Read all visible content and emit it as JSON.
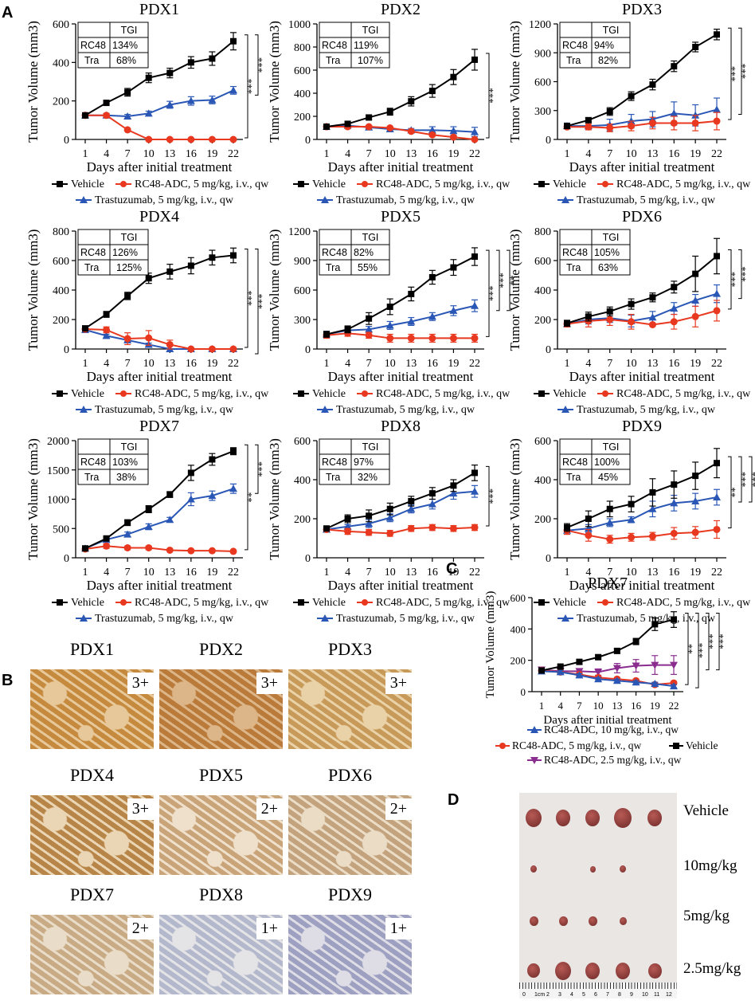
{
  "panel_letters": {
    "A": "A",
    "B": "B",
    "C": "C",
    "D": "D"
  },
  "common": {
    "ylabel": "Tumor Volume (mm3)",
    "xlabel": "Days after initial treatment",
    "days": [
      "1",
      "4",
      "7",
      "10",
      "13",
      "16",
      "19",
      "22"
    ],
    "legend_vehicle": "Vehicle",
    "legend_rc48": "RC48-ADC, 5 mg/kg, i.v., qw",
    "legend_tra": "Trastuzumab, 5 mg/kg, i.v., qw",
    "tgi_header": "TGI",
    "row1": "RC48",
    "row2": "Tra"
  },
  "colors": {
    "vehicle": "#000000",
    "rc48": "#e8381f",
    "tra": "#2a57b5",
    "rc48_25": "#8a2d8f"
  },
  "chart_data": [
    {
      "type": "line",
      "title": "PDX1",
      "ylim": [
        0,
        600
      ],
      "yticks": [
        "0",
        "200",
        "400",
        "600"
      ],
      "tgi": [
        "134%",
        "68%"
      ],
      "series": [
        {
          "name": "Vehicle",
          "values": [
            125,
            190,
            245,
            320,
            345,
            400,
            420,
            510
          ],
          "err": [
            10,
            12,
            20,
            25,
            25,
            30,
            35,
            45
          ]
        },
        {
          "name": "RC48",
          "values": [
            125,
            125,
            50,
            0,
            0,
            0,
            0,
            0
          ],
          "err": [
            8,
            8,
            5,
            0,
            0,
            0,
            0,
            0
          ]
        },
        {
          "name": "Tra",
          "values": [
            125,
            125,
            120,
            135,
            180,
            200,
            205,
            255
          ],
          "err": [
            10,
            10,
            10,
            12,
            18,
            22,
            20,
            20
          ]
        }
      ],
      "sig": [
        "***",
        "***"
      ]
    },
    {
      "type": "line",
      "title": "PDX2",
      "ylim": [
        0,
        1000
      ],
      "yticks": [
        "0",
        "200",
        "400",
        "600",
        "800",
        "1000"
      ],
      "tgi": [
        "119%",
        "107%"
      ],
      "series": [
        {
          "name": "Vehicle",
          "values": [
            110,
            135,
            190,
            240,
            330,
            420,
            540,
            690
          ],
          "err": [
            10,
            12,
            20,
            30,
            40,
            55,
            65,
            90
          ]
        },
        {
          "name": "RC48",
          "values": [
            110,
            110,
            110,
            100,
            70,
            40,
            20,
            0
          ],
          "err": [
            10,
            10,
            10,
            10,
            10,
            8,
            5,
            0
          ]
        },
        {
          "name": "Tra",
          "values": [
            110,
            120,
            105,
            90,
            80,
            80,
            75,
            65
          ],
          "err": [
            10,
            12,
            12,
            12,
            15,
            30,
            35,
            40
          ]
        }
      ],
      "sig": [
        "***"
      ]
    },
    {
      "type": "line",
      "title": "PDX3",
      "ylim": [
        0,
        1200
      ],
      "yticks": [
        "0",
        "300",
        "600",
        "900",
        "1200"
      ],
      "tgi": [
        "94%",
        "82%"
      ],
      "series": [
        {
          "name": "Vehicle",
          "values": [
            140,
            200,
            290,
            450,
            570,
            760,
            960,
            1090
          ],
          "err": [
            20,
            25,
            40,
            45,
            55,
            55,
            50,
            55
          ]
        },
        {
          "name": "RC48",
          "values": [
            130,
            130,
            120,
            140,
            170,
            170,
            170,
            190
          ],
          "err": [
            20,
            30,
            40,
            50,
            60,
            70,
            80,
            90
          ]
        },
        {
          "name": "Tra",
          "values": [
            140,
            140,
            150,
            190,
            210,
            270,
            250,
            310
          ],
          "err": [
            30,
            40,
            60,
            70,
            80,
            120,
            110,
            120
          ]
        }
      ],
      "sig": [
        "***",
        "***"
      ]
    },
    {
      "type": "line",
      "title": "PDX4",
      "ylim": [
        0,
        800
      ],
      "yticks": [
        "0",
        "200",
        "400",
        "600",
        "800"
      ],
      "tgi": [
        "126%",
        "125%"
      ],
      "series": [
        {
          "name": "Vehicle",
          "values": [
            140,
            235,
            360,
            480,
            525,
            565,
            620,
            635
          ],
          "err": [
            10,
            20,
            25,
            35,
            50,
            55,
            50,
            50
          ]
        },
        {
          "name": "RC48",
          "values": [
            135,
            130,
            70,
            75,
            30,
            0,
            0,
            0
          ],
          "err": [
            12,
            20,
            40,
            50,
            30,
            0,
            0,
            0
          ]
        },
        {
          "name": "Tra",
          "values": [
            130,
            90,
            60,
            30,
            0,
            0,
            0,
            0
          ],
          "err": [
            10,
            10,
            10,
            10,
            0,
            0,
            0,
            0
          ]
        }
      ],
      "sig": [
        "***",
        "***"
      ]
    },
    {
      "type": "line",
      "title": "PDX5",
      "ylim": [
        0,
        1200
      ],
      "yticks": [
        "0",
        "300",
        "600",
        "900",
        "1200"
      ],
      "tgi": [
        "82%",
        "55%"
      ],
      "series": [
        {
          "name": "Vehicle",
          "values": [
            150,
            200,
            310,
            430,
            560,
            730,
            830,
            940
          ],
          "err": [
            30,
            35,
            60,
            80,
            70,
            70,
            80,
            90
          ]
        },
        {
          "name": "RC48",
          "values": [
            140,
            160,
            140,
            110,
            110,
            110,
            110,
            110
          ],
          "err": [
            30,
            30,
            30,
            40,
            40,
            40,
            40,
            40
          ]
        },
        {
          "name": "Tra",
          "values": [
            150,
            190,
            200,
            240,
            280,
            330,
            390,
            440
          ],
          "err": [
            30,
            30,
            30,
            40,
            40,
            40,
            50,
            60
          ]
        }
      ],
      "sig": [
        "***",
        "***",
        "**"
      ]
    },
    {
      "type": "line",
      "title": "PDX6",
      "ylim": [
        0,
        800
      ],
      "yticks": [
        "0",
        "200",
        "400",
        "600",
        "800"
      ],
      "tgi": [
        "105%",
        "63%"
      ],
      "series": [
        {
          "name": "Vehicle",
          "values": [
            175,
            220,
            255,
            305,
            350,
            420,
            510,
            630
          ],
          "err": [
            20,
            30,
            30,
            35,
            30,
            40,
            120,
            120
          ]
        },
        {
          "name": "RC48",
          "values": [
            170,
            190,
            200,
            185,
            165,
            185,
            220,
            260
          ],
          "err": [
            20,
            40,
            40,
            50,
            10,
            50,
            70,
            70
          ]
        },
        {
          "name": "Tra",
          "values": [
            170,
            200,
            210,
            190,
            215,
            275,
            330,
            375
          ],
          "err": [
            20,
            30,
            30,
            40,
            40,
            40,
            40,
            60
          ]
        }
      ],
      "sig": [
        "***",
        "***"
      ]
    },
    {
      "type": "line",
      "title": "PDX7",
      "ylim": [
        0,
        2000
      ],
      "yticks": [
        "0",
        "500",
        "1000",
        "1500",
        "2000"
      ],
      "tgi": [
        "103%",
        "38%"
      ],
      "series": [
        {
          "name": "Vehicle",
          "values": [
            160,
            330,
            600,
            830,
            1080,
            1450,
            1680,
            1820
          ],
          "err": [
            20,
            30,
            50,
            60,
            50,
            130,
            100,
            60
          ]
        },
        {
          "name": "RC48",
          "values": [
            150,
            200,
            170,
            170,
            130,
            120,
            120,
            110
          ],
          "err": [
            20,
            40,
            30,
            30,
            20,
            20,
            20,
            20
          ]
        },
        {
          "name": "Tra",
          "values": [
            160,
            310,
            400,
            530,
            650,
            1000,
            1060,
            1180
          ],
          "err": [
            20,
            30,
            40,
            50,
            40,
            110,
            80,
            80
          ]
        }
      ],
      "sig": [
        "**",
        "***"
      ]
    },
    {
      "type": "line",
      "title": "PDX8",
      "ylim": [
        0,
        600
      ],
      "yticks": [
        "0",
        "200",
        "400",
        "600"
      ],
      "tgi": [
        "97%",
        "32%"
      ],
      "series": [
        {
          "name": "Vehicle",
          "values": [
            150,
            200,
            215,
            250,
            290,
            330,
            370,
            435
          ],
          "err": [
            10,
            20,
            30,
            30,
            25,
            30,
            30,
            40
          ]
        },
        {
          "name": "RC48",
          "values": [
            145,
            135,
            130,
            125,
            150,
            155,
            150,
            155
          ],
          "err": [
            10,
            15,
            15,
            15,
            15,
            15,
            15,
            15
          ]
        },
        {
          "name": "Tra",
          "values": [
            145,
            160,
            175,
            205,
            250,
            275,
            330,
            340
          ],
          "err": [
            10,
            10,
            20,
            20,
            20,
            25,
            30,
            30
          ]
        }
      ],
      "sig": [
        "***"
      ]
    },
    {
      "type": "line",
      "title": "PDX9",
      "ylim": [
        0,
        600
      ],
      "yticks": [
        "0",
        "200",
        "400",
        "600"
      ],
      "tgi": [
        "100%",
        "45%"
      ],
      "series": [
        {
          "name": "Vehicle",
          "values": [
            155,
            200,
            250,
            275,
            335,
            375,
            420,
            485
          ],
          "err": [
            20,
            40,
            40,
            40,
            70,
            70,
            70,
            75
          ]
        },
        {
          "name": "RC48",
          "values": [
            140,
            115,
            95,
            105,
            110,
            125,
            130,
            145
          ],
          "err": [
            20,
            30,
            20,
            20,
            20,
            30,
            30,
            45
          ]
        },
        {
          "name": "Tra",
          "values": [
            140,
            150,
            180,
            195,
            250,
            280,
            290,
            310
          ],
          "err": [
            10,
            20,
            20,
            15,
            40,
            40,
            40,
            40
          ]
        }
      ],
      "sig": [
        "**",
        "***",
        "***"
      ]
    },
    {
      "type": "line",
      "title": "PDX7",
      "ylim": [
        0,
        600
      ],
      "yticks": [
        "0",
        "200",
        "400",
        "600"
      ],
      "series": [
        {
          "name": "Vehicle",
          "values": [
            135,
            160,
            190,
            220,
            260,
            320,
            430,
            460
          ],
          "err": [
            10,
            10,
            15,
            15,
            15,
            20,
            40,
            50
          ]
        },
        {
          "name": "RC48-ADC, 10 mg/kg",
          "values": [
            130,
            125,
            105,
            80,
            70,
            60,
            50,
            35
          ],
          "err": [
            10,
            10,
            10,
            10,
            10,
            10,
            10,
            10
          ]
        },
        {
          "name": "RC48-ADC, 5 mg/kg",
          "values": [
            135,
            125,
            110,
            90,
            80,
            70,
            45,
            55
          ],
          "err": [
            10,
            10,
            10,
            10,
            10,
            10,
            10,
            10
          ]
        },
        {
          "name": "RC48-ADC, 2.5 mg/kg",
          "values": [
            140,
            130,
            130,
            125,
            150,
            165,
            170,
            170
          ],
          "err": [
            10,
            15,
            15,
            20,
            30,
            40,
            60,
            60
          ]
        }
      ],
      "sig": [
        "**",
        "***",
        "***",
        "***"
      ],
      "legend": [
        "RC48-ADC, 10 mg/kg, i.v., qw",
        "RC48-ADC, 5 mg/kg, i.v., qw",
        "Vehicle",
        "RC48-ADC, 2.5 mg/kg, i.v., qw"
      ]
    }
  ],
  "ihc": [
    {
      "name": "PDX1",
      "score": "3+"
    },
    {
      "name": "PDX2",
      "score": "3+"
    },
    {
      "name": "PDX3",
      "score": "3+"
    },
    {
      "name": "PDX4",
      "score": "3+"
    },
    {
      "name": "PDX5",
      "score": "2+"
    },
    {
      "name": "PDX6",
      "score": "2+"
    },
    {
      "name": "PDX7",
      "score": "2+"
    },
    {
      "name": "PDX8",
      "score": "1+"
    },
    {
      "name": "PDX9",
      "score": "1+"
    }
  ],
  "tumor_photo": {
    "labels": [
      "Vehicle",
      "10mg/kg",
      "5mg/kg",
      "2.5mg/kg"
    ],
    "ruler_marks": [
      "0",
      "1cm",
      "2",
      "3",
      "4",
      "5",
      "6",
      "7",
      "8",
      "9",
      "10",
      "11",
      "12"
    ]
  }
}
